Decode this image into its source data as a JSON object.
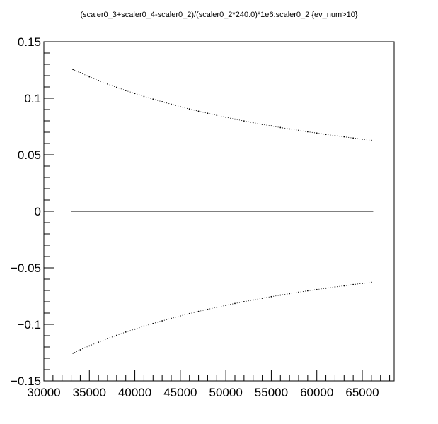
{
  "chart_data": {
    "type": "scatter",
    "title": "(scaler0_3+scaler0_4-scaler0_2)/(scaler0_2*240.0)*1e6:scaler0_2 {ev_num>10}",
    "xlabel": "",
    "ylabel": "",
    "xlim": [
      30000,
      68500
    ],
    "ylim": [
      -0.15,
      0.15
    ],
    "x_ticks": [
      30000,
      35000,
      40000,
      45000,
      50000,
      55000,
      60000,
      65000
    ],
    "x_tick_labels": [
      "30000",
      "35000",
      "40000",
      "45000",
      "50000",
      "55000",
      "60000",
      "65000"
    ],
    "y_ticks": [
      -0.15,
      -0.1,
      -0.05,
      0,
      0.05,
      0.1,
      0.15
    ],
    "y_tick_labels": [
      "−0.15",
      "−0.1",
      "−0.05",
      "0",
      "0.05",
      "0.1",
      "0.15"
    ],
    "grid": false,
    "series": [
      {
        "color": "#000000",
        "x": [
          33200,
          34000,
          35000,
          36000,
          37000,
          38000,
          39000,
          40000,
          41000,
          42000,
          43000,
          44000,
          45000,
          46000,
          47000,
          48000,
          49000,
          50000,
          51000,
          52000,
          53000,
          54000,
          55000,
          56000,
          57000,
          58000,
          59000,
          60000,
          61000,
          62000,
          63000,
          64000,
          65000,
          66000
        ],
        "y": [
          0.1255,
          0.1225,
          0.119,
          0.1157,
          0.1126,
          0.1097,
          0.1068,
          0.1042,
          0.1016,
          0.0992,
          0.0969,
          0.0947,
          0.0925,
          0.0905,
          0.0885,
          0.0867,
          0.0849,
          0.0832,
          0.0815,
          0.0799,
          0.0784,
          0.0769,
          0.0755,
          0.0741,
          0.0728,
          0.0716,
          0.0703,
          0.0692,
          0.068,
          0.0669,
          0.0659,
          0.0648,
          0.0638,
          0.0628
        ]
      },
      {
        "color": "#000000",
        "x": [
          33200,
          34000,
          35000,
          36000,
          37000,
          38000,
          39000,
          40000,
          41000,
          42000,
          43000,
          44000,
          45000,
          46000,
          47000,
          48000,
          49000,
          50000,
          51000,
          52000,
          53000,
          54000,
          55000,
          56000,
          57000,
          58000,
          59000,
          60000,
          61000,
          62000,
          63000,
          64000,
          65000,
          66000
        ],
        "y": [
          -0.1255,
          -0.1225,
          -0.119,
          -0.1157,
          -0.1126,
          -0.1097,
          -0.1068,
          -0.1042,
          -0.1016,
          -0.0992,
          -0.0969,
          -0.0947,
          -0.0925,
          -0.0905,
          -0.0885,
          -0.0867,
          -0.0849,
          -0.0832,
          -0.0815,
          -0.0799,
          -0.0784,
          -0.0769,
          -0.0755,
          -0.0741,
          -0.0728,
          -0.0716,
          -0.0703,
          -0.0692,
          -0.068,
          -0.0669,
          -0.0659,
          -0.0648,
          -0.0638,
          -0.0628
        ]
      },
      {
        "color": "#000000",
        "x": [
          33000,
          66200
        ],
        "y": [
          0,
          0
        ],
        "style": "line"
      }
    ]
  }
}
